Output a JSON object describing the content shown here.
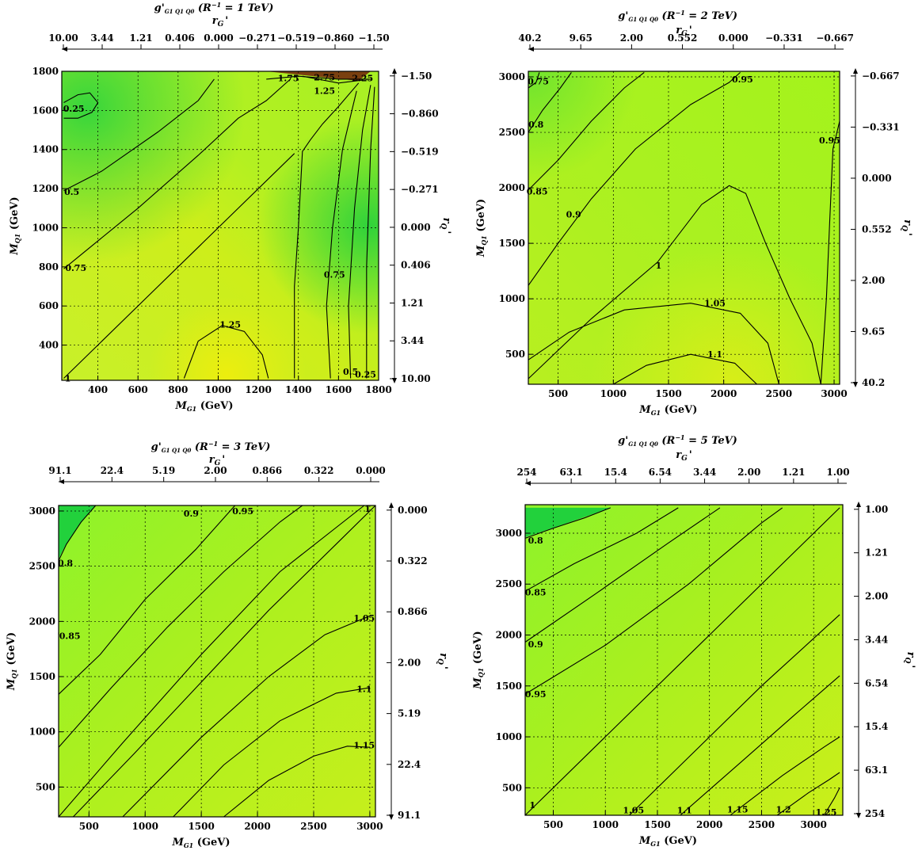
{
  "colors": {
    "contour_line": "#000000",
    "grid": "#000000",
    "low_value": "#22d13c",
    "mid_value": "#9ef51c",
    "high_value": "#e8ef12",
    "peak_value": "#7a4010"
  },
  "chart_data": [
    {
      "type": "contour",
      "title_main": "g'",
      "title_sub": "G1 Q1 Q0",
      "title_tail": " (R",
      "title_sup": "−1",
      "title_end": " = 1 TeV)",
      "top_label": "r",
      "top_label_sub": "G",
      "top_label_prime": "'",
      "right_label": "r",
      "right_label_sub": "Q",
      "right_label_prime": "'",
      "xlabel": "M",
      "xlabel_sub": "G1",
      "xlabel_unit": " (GeV)",
      "ylabel": "M",
      "ylabel_sub": "Q1",
      "ylabel_unit": " (GeV)",
      "xlim": [
        220,
        1800
      ],
      "ylim": [
        220,
        1800
      ],
      "x_ticks": [
        "400",
        "600",
        "800",
        "1000",
        "1200",
        "1400",
        "1600",
        "1800"
      ],
      "y_ticks": [
        "400",
        "600",
        "800",
        "1000",
        "1200",
        "1400",
        "1600",
        "1800"
      ],
      "top_ticks": [
        "10.00",
        "3.44",
        "1.21",
        "0.406",
        "0.000",
        "−0.271",
        "−0.519",
        "−0.860",
        "−1.50"
      ],
      "right_ticks": [
        "10.00",
        "3.44",
        "1.21",
        "0.406",
        "0.000",
        "−0.271",
        "−0.519",
        "−0.860",
        "−1.50"
      ],
      "contour_levels": [
        "0.25",
        "0.5",
        "0.75",
        "1",
        "1.25",
        "1.75",
        "2.25",
        "2.75"
      ],
      "contour_labels": [
        {
          "text": "0.25",
          "x": 280,
          "y": 1610
        },
        {
          "text": "0.5",
          "x": 270,
          "y": 1185
        },
        {
          "text": "0.75",
          "x": 290,
          "y": 795
        },
        {
          "text": "1",
          "x": 250,
          "y": 230
        },
        {
          "text": "1.25",
          "x": 1060,
          "y": 505
        },
        {
          "text": "0.75",
          "x": 1580,
          "y": 760
        },
        {
          "text": "0.5",
          "x": 1660,
          "y": 265
        },
        {
          "text": "0.25",
          "x": 1735,
          "y": 250
        },
        {
          "text": "1.25",
          "x": 1530,
          "y": 1700
        },
        {
          "text": "1.75",
          "x": 1350,
          "y": 1765
        },
        {
          "text": "2.25",
          "x": 1720,
          "y": 1765
        },
        {
          "text": "2.75",
          "x": 1530,
          "y": 1770
        }
      ]
    },
    {
      "type": "contour",
      "title_main": "g'",
      "title_sub": "G1 Q1 Q0",
      "title_tail": " (R",
      "title_sup": "−1",
      "title_end": " = 2 TeV)",
      "top_label": "r",
      "top_label_sub": "G",
      "top_label_prime": "'",
      "right_label": "r",
      "right_label_sub": "Q",
      "right_label_prime": "'",
      "xlabel": "M",
      "xlabel_sub": "G1",
      "xlabel_unit": " (GeV)",
      "ylabel": "M",
      "ylabel_sub": "Q1",
      "ylabel_unit": " (GeV)",
      "xlim": [
        230,
        3050
      ],
      "ylim": [
        230,
        3050
      ],
      "x_ticks": [
        "500",
        "1000",
        "1500",
        "2000",
        "2500",
        "3000"
      ],
      "y_ticks": [
        "500",
        "1000",
        "1500",
        "2000",
        "2500",
        "3000"
      ],
      "top_ticks": [
        "40.2",
        "9.65",
        "2.00",
        "0.552",
        "0.000",
        "−0.331",
        "−0.667"
      ],
      "right_ticks": [
        "40.2",
        "9.65",
        "2.00",
        "0.552",
        "0.000",
        "−0.331",
        "−0.667"
      ],
      "contour_levels": [
        "0.75",
        "0.8",
        "0.85",
        "0.9",
        "0.95",
        "1",
        "1.05",
        "1.1"
      ],
      "contour_labels": [
        {
          "text": "0.75",
          "x": 320,
          "y": 2960
        },
        {
          "text": "0.8",
          "x": 300,
          "y": 2570
        },
        {
          "text": "0.85",
          "x": 310,
          "y": 1970
        },
        {
          "text": "0.9",
          "x": 640,
          "y": 1760
        },
        {
          "text": "0.95",
          "x": 2170,
          "y": 2980
        },
        {
          "text": "0.95",
          "x": 2960,
          "y": 2430
        },
        {
          "text": "1",
          "x": 1410,
          "y": 1300
        },
        {
          "text": "1.05",
          "x": 1920,
          "y": 960
        },
        {
          "text": "1.1",
          "x": 1920,
          "y": 500
        }
      ]
    },
    {
      "type": "contour",
      "title_main": "g'",
      "title_sub": "G1 Q1 Q0",
      "title_tail": " (R",
      "title_sup": "−1",
      "title_end": " = 3 TeV)",
      "top_label": "r",
      "top_label_sub": "G",
      "top_label_prime": "'",
      "right_label": "r",
      "right_label_sub": "Q",
      "right_label_prime": "'",
      "xlabel": "M",
      "xlabel_sub": "G1",
      "xlabel_unit": " (GeV)",
      "ylabel": "M",
      "ylabel_sub": "Q1",
      "ylabel_unit": " (GeV)",
      "xlim": [
        230,
        3050
      ],
      "ylim": [
        230,
        3050
      ],
      "x_ticks": [
        "500",
        "1000",
        "1500",
        "2000",
        "2500",
        "3000"
      ],
      "y_ticks": [
        "500",
        "1000",
        "1500",
        "2000",
        "2500",
        "3000"
      ],
      "top_ticks": [
        "91.1",
        "22.4",
        "5.19",
        "2.00",
        "0.866",
        "0.322",
        "0.000"
      ],
      "right_ticks": [
        "91.1",
        "22.4",
        "5.19",
        "2.00",
        "0.866",
        "0.322",
        "0.000"
      ],
      "contour_levels": [
        "0.8",
        "0.85",
        "0.9",
        "0.95",
        "1",
        "1.05",
        "1.1",
        "1.15"
      ],
      "contour_labels": [
        {
          "text": "0.8",
          "x": 290,
          "y": 2530
        },
        {
          "text": "0.85",
          "x": 330,
          "y": 1870
        },
        {
          "text": "0.9",
          "x": 1410,
          "y": 2980
        },
        {
          "text": "0.95",
          "x": 1870,
          "y": 3000
        },
        {
          "text": "1",
          "x": 2980,
          "y": 3020
        },
        {
          "text": "1.05",
          "x": 2950,
          "y": 2030
        },
        {
          "text": "1.1",
          "x": 2950,
          "y": 1390
        },
        {
          "text": "1.15",
          "x": 2950,
          "y": 880
        }
      ]
    },
    {
      "type": "contour",
      "title_main": "g'",
      "title_sub": "G1 Q1 Q0",
      "title_tail": " (R",
      "title_sup": "−1",
      "title_end": " = 5 TeV)",
      "top_label": "r",
      "top_label_sub": "G",
      "top_label_prime": "'",
      "right_label": "r",
      "right_label_sub": "Q",
      "right_label_prime": "'",
      "xlabel": "M",
      "xlabel_sub": "G1",
      "xlabel_unit": " (GeV)",
      "ylabel": "M",
      "ylabel_sub": "Q1",
      "ylabel_unit": " (GeV)",
      "xlim": [
        230,
        3280
      ],
      "ylim": [
        230,
        3280
      ],
      "x_ticks": [
        "500",
        "1000",
        "1500",
        "2000",
        "2500",
        "3000"
      ],
      "y_ticks": [
        "500",
        "1000",
        "1500",
        "2000",
        "2500",
        "3000"
      ],
      "top_ticks": [
        "254",
        "63.1",
        "15.4",
        "6.54",
        "3.44",
        "2.00",
        "1.21",
        "1.00"
      ],
      "right_ticks": [
        "254",
        "63.1",
        "15.4",
        "6.54",
        "3.44",
        "2.00",
        "1.21",
        "1.00"
      ],
      "contour_levels": [
        "0.8",
        "0.85",
        "0.9",
        "0.95",
        "1",
        "1.05",
        "1.1",
        "1.15",
        "1.2",
        "1.25"
      ],
      "contour_labels": [
        {
          "text": "0.8",
          "x": 330,
          "y": 2930
        },
        {
          "text": "0.85",
          "x": 330,
          "y": 2420
        },
        {
          "text": "0.9",
          "x": 330,
          "y": 1910
        },
        {
          "text": "0.95",
          "x": 330,
          "y": 1420
        },
        {
          "text": "1",
          "x": 300,
          "y": 330
        },
        {
          "text": "1.05",
          "x": 1270,
          "y": 280
        },
        {
          "text": "1.1",
          "x": 1760,
          "y": 280
        },
        {
          "text": "1.15",
          "x": 2270,
          "y": 290
        },
        {
          "text": "1.2",
          "x": 2710,
          "y": 290
        },
        {
          "text": "1.25",
          "x": 3120,
          "y": 260
        }
      ]
    }
  ]
}
